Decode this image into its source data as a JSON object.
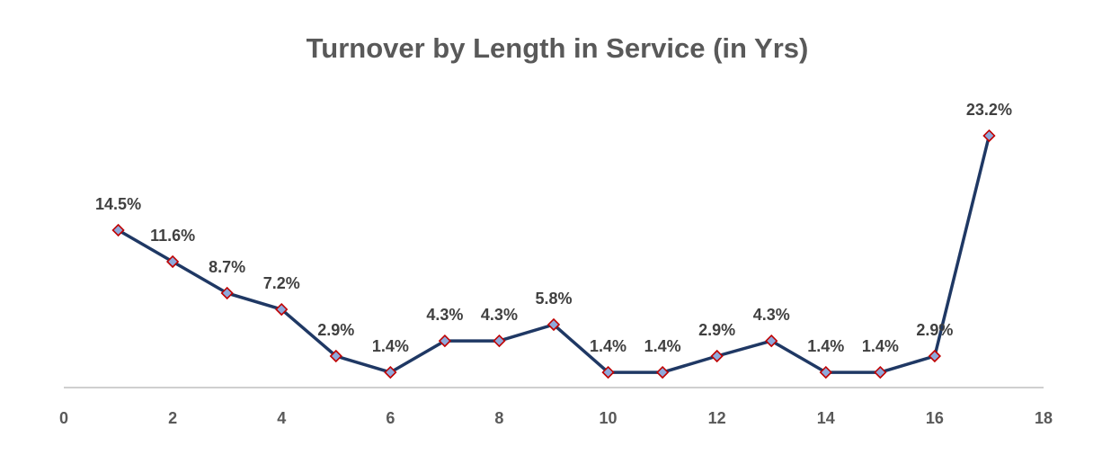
{
  "chart_data": {
    "type": "scatter",
    "mode": "lines+markers",
    "title": "Turnover by Length in Service (in Yrs)",
    "x": [
      1,
      2,
      3,
      4,
      5,
      6,
      7,
      8,
      9,
      10,
      11,
      12,
      13,
      14,
      15,
      16,
      17
    ],
    "y": [
      14.5,
      11.6,
      8.7,
      7.2,
      2.9,
      1.4,
      4.3,
      4.3,
      5.8,
      1.4,
      1.4,
      2.9,
      4.3,
      1.4,
      1.4,
      2.9,
      23.2
    ],
    "data_labels": [
      "14.5%",
      "11.6%",
      "8.7%",
      "7.2%",
      "2.9%",
      "1.4%",
      "4.3%",
      "4.3%",
      "5.8%",
      "1.4%",
      "1.4%",
      "2.9%",
      "4.3%",
      "1.4%",
      "1.4%",
      "2.9%",
      "23.2%"
    ],
    "xlim": [
      0,
      18
    ],
    "x_ticks": [
      "0",
      "2",
      "4",
      "6",
      "8",
      "10",
      "12",
      "14",
      "16",
      "18"
    ],
    "y_axis_visible": false,
    "grid": false,
    "legend": "none",
    "colors": {
      "line": "#1f3864",
      "marker_fill": "#8ea9db",
      "marker_edge": "#c00000",
      "axis": "#bfbfbf",
      "text": "#595959"
    }
  }
}
